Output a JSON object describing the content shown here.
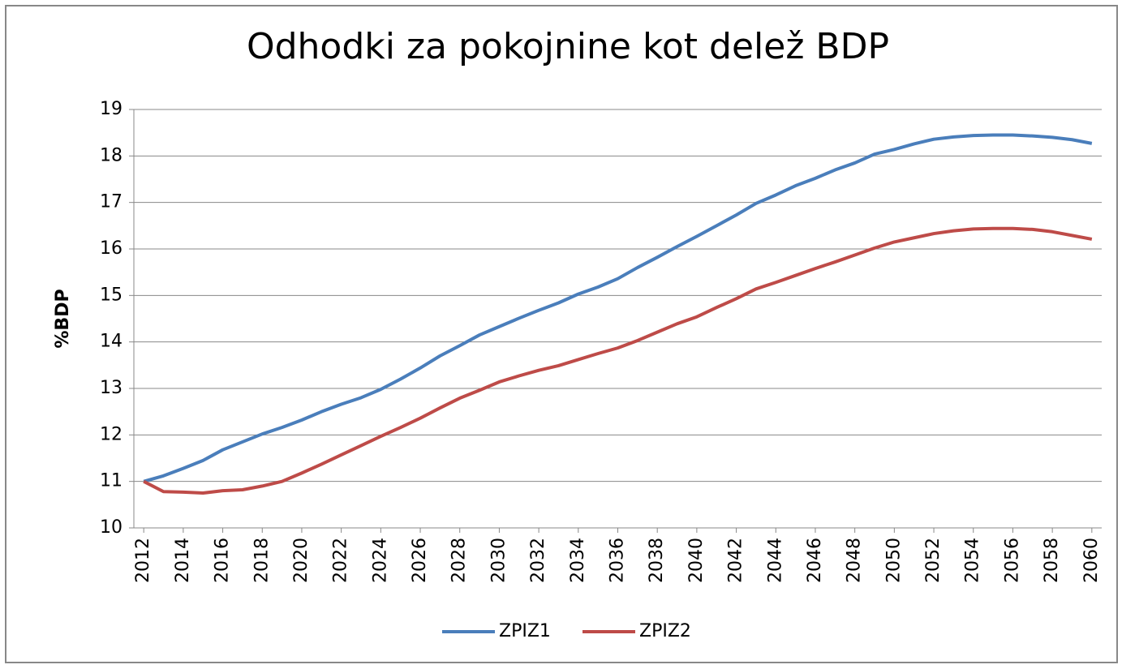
{
  "chart_data": {
    "type": "line",
    "title": "Odhodki za pokojnine kot delež BDP",
    "y_label": "%BDP",
    "x": [
      2012,
      2013,
      2014,
      2015,
      2016,
      2017,
      2018,
      2019,
      2020,
      2021,
      2022,
      2023,
      2024,
      2025,
      2026,
      2027,
      2028,
      2029,
      2030,
      2031,
      2032,
      2033,
      2034,
      2035,
      2036,
      2037,
      2038,
      2039,
      2040,
      2041,
      2042,
      2043,
      2044,
      2045,
      2046,
      2047,
      2048,
      2049,
      2050,
      2051,
      2052,
      2053,
      2054,
      2055,
      2056,
      2057,
      2058,
      2059,
      2060
    ],
    "series": [
      {
        "name": "ZPIZ1",
        "color": "#4a7ebb",
        "values": [
          11.0,
          11.12,
          11.28,
          11.45,
          11.68,
          11.85,
          12.02,
          12.16,
          12.32,
          12.5,
          12.66,
          12.8,
          12.98,
          13.2,
          13.44,
          13.7,
          13.92,
          14.15,
          14.33,
          14.51,
          14.68,
          14.84,
          15.03,
          15.18,
          15.36,
          15.6,
          15.82,
          16.05,
          16.27,
          16.5,
          16.73,
          16.98,
          17.16,
          17.36,
          17.52,
          17.7,
          17.85,
          18.04,
          18.14,
          18.26,
          18.36,
          18.41,
          18.44,
          18.45,
          18.45,
          18.43,
          18.4,
          18.35,
          18.27
        ]
      },
      {
        "name": "ZPIZ2",
        "color": "#be4b48",
        "values": [
          11.0,
          10.78,
          10.77,
          10.75,
          10.8,
          10.82,
          10.9,
          11.0,
          11.18,
          11.37,
          11.57,
          11.77,
          11.97,
          12.16,
          12.36,
          12.58,
          12.79,
          12.96,
          13.14,
          13.27,
          13.39,
          13.49,
          13.62,
          13.75,
          13.87,
          14.03,
          14.21,
          14.39,
          14.54,
          14.74,
          14.93,
          15.14,
          15.28,
          15.43,
          15.58,
          15.72,
          15.87,
          16.02,
          16.15,
          16.24,
          16.33,
          16.39,
          16.43,
          16.44,
          16.44,
          16.42,
          16.37,
          16.29,
          16.21
        ]
      }
    ],
    "xlim": [
      2011.5,
      2060.5
    ],
    "xticks": [
      2012,
      2014,
      2016,
      2018,
      2020,
      2022,
      2024,
      2026,
      2028,
      2030,
      2032,
      2034,
      2036,
      2038,
      2040,
      2042,
      2044,
      2046,
      2048,
      2050,
      2052,
      2054,
      2056,
      2058,
      2060
    ],
    "ylim": [
      10,
      19
    ],
    "yticks": [
      10,
      11,
      12,
      13,
      14,
      15,
      16,
      17,
      18,
      19
    ],
    "grid": true,
    "legend": "bottom"
  }
}
